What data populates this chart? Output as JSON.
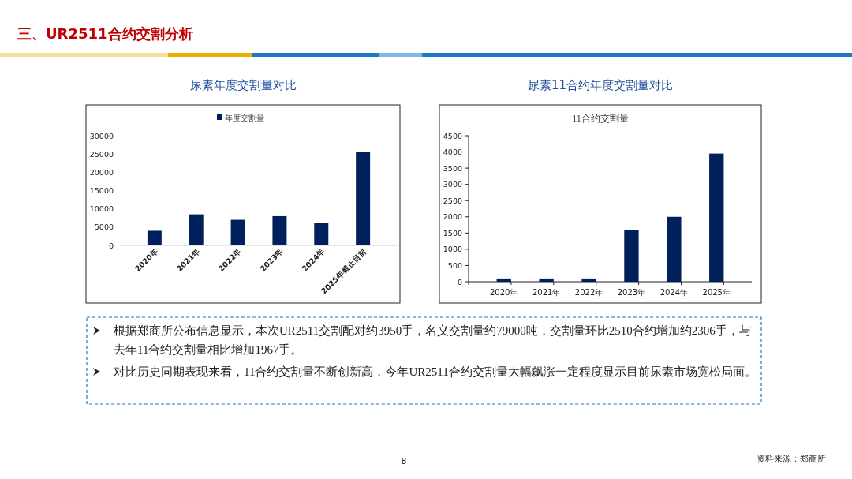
{
  "chart_data": [
    {
      "type": "bar",
      "title": "尿素年度交割量对比",
      "categories": [
        "2020年",
        "2021年",
        "2022年",
        "2023年",
        "2024年",
        "2025年截止目前"
      ],
      "series": [
        {
          "name": "年度交割量",
          "color": "#00205b",
          "values": [
            4000,
            8500,
            7000,
            8000,
            6200,
            25500
          ]
        }
      ],
      "ylim": [
        0,
        30000
      ],
      "yticks": [
        0,
        5000,
        10000,
        15000,
        20000,
        25000,
        30000
      ],
      "legend": "top",
      "grid": false
    },
    {
      "type": "bar",
      "title": "尿素11合约年度交割量对比",
      "subtitle": "11合约交割量",
      "categories": [
        "2020年",
        "2021年",
        "2022年",
        "2023年",
        "2024年",
        "2025年"
      ],
      "series": [
        {
          "color": "#00205b",
          "values": [
            100,
            100,
            100,
            1600,
            2000,
            3950
          ]
        }
      ],
      "ylim": [
        0,
        4500
      ],
      "yticks": [
        0,
        500,
        1000,
        1500,
        2000,
        2500,
        3000,
        3500,
        4000,
        4500
      ],
      "grid": false
    },
    {
      "type": "other",
      "title": "三、UR2511合约交割分析",
      "annotations": [
        "根据郑商所公布信息显示，本次UR2511交割配对约3950手，名义交割量约79000吨，交割量环比2510合约增加约2306手，与去年11合约交割量相比增加1967手。",
        "对比历史同期表现来看，11合约交割量不断创新高，今年UR2511合约交割量大幅飙涨一定程度显示目前尿素市场宽松局面。",
        "8",
        "资料来源：郑商所"
      ]
    }
  ]
}
